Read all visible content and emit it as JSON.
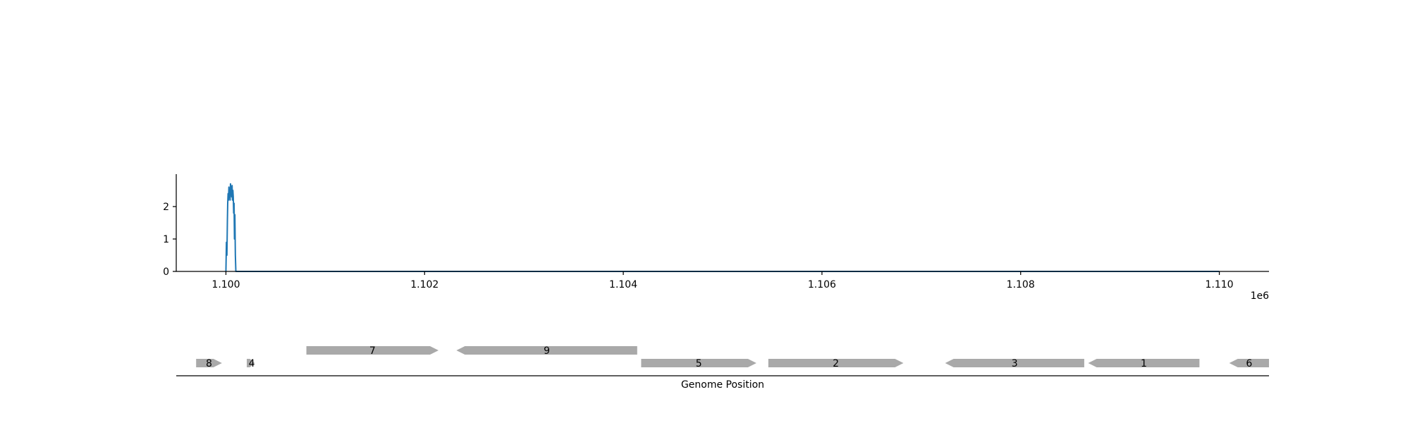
{
  "chart_data": [
    {
      "type": "line",
      "title": "",
      "xlabel": "",
      "ylabel": "",
      "x_offset_label": "1e6",
      "xlim": [
        1099500,
        1110500
      ],
      "ylim": [
        0,
        3
      ],
      "x_ticks": [
        1100000,
        1102000,
        1104000,
        1106000,
        1108000,
        1110000
      ],
      "x_tick_labels": [
        "1.100",
        "1.102",
        "1.104",
        "1.106",
        "1.108",
        "1.110"
      ],
      "y_ticks": [
        0,
        1,
        2
      ],
      "y_tick_labels": [
        "0",
        "1",
        "2"
      ],
      "grid": false,
      "series_color": "#1f77b4",
      "series": [
        {
          "x": [
            1100000,
            1100005,
            1100010,
            1100015,
            1100018,
            1100022,
            1100026,
            1100030,
            1100034,
            1100038,
            1100042,
            1100046,
            1100050,
            1100054,
            1100058,
            1100062,
            1100066,
            1100070,
            1100074,
            1100078,
            1100082,
            1100086,
            1100090,
            1100095,
            1100100,
            1100105,
            1102000,
            1104000,
            1106000,
            1108000,
            1110000
          ],
          "y": [
            0,
            0.9,
            0.5,
            1.6,
            2.1,
            2.4,
            2.2,
            2.6,
            2.3,
            2.5,
            2.2,
            2.7,
            2.4,
            2.6,
            2.3,
            2.65,
            2.2,
            2.5,
            2.3,
            1.8,
            2.1,
            1.0,
            1.75,
            0.5,
            0,
            0,
            0,
            0,
            0,
            0,
            0
          ]
        }
      ]
    },
    {
      "type": "gene_map",
      "xlabel": "Genome Position",
      "feature_color": "#a9a9a9",
      "genes": [
        {
          "label": "8",
          "start": 1099700,
          "end": 1099960,
          "strand": "+",
          "track": 0
        },
        {
          "label": "4",
          "start": 1100210,
          "end": 1100290,
          "strand": "+",
          "track": 0
        },
        {
          "label": "7",
          "start": 1100810,
          "end": 1102140,
          "strand": "+",
          "track": 1
        },
        {
          "label": "9",
          "start": 1102320,
          "end": 1104140,
          "strand": "-",
          "track": 1
        },
        {
          "label": "5",
          "start": 1104180,
          "end": 1105340,
          "strand": "+",
          "track": 0
        },
        {
          "label": "2",
          "start": 1105460,
          "end": 1106820,
          "strand": "+",
          "track": 0
        },
        {
          "label": "3",
          "start": 1107240,
          "end": 1108640,
          "strand": "-",
          "track": 0
        },
        {
          "label": "1",
          "start": 1108680,
          "end": 1109800,
          "strand": "-",
          "track": 0
        },
        {
          "label": "6",
          "start": 1110100,
          "end": 1111100,
          "strand": "-",
          "track": 0
        }
      ]
    }
  ]
}
